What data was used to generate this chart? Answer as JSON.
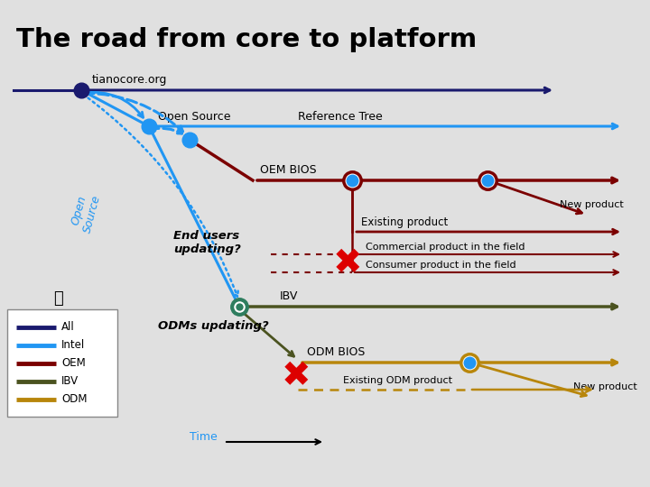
{
  "title": "The road from core to platform",
  "bg_color": "#e0e0e0",
  "colors": {
    "all": "#1a1a6e",
    "intel": "#2196F3",
    "oem": "#7B0000",
    "ibv": "#4B5320",
    "odm": "#B8860B",
    "red_x": "#dd0000",
    "blue_dot": "#2196F3",
    "teal_dot": "#2e7d5e"
  },
  "legend_items": [
    {
      "label": "All",
      "color": "#1a1a6e"
    },
    {
      "label": "Intel",
      "color": "#2196F3"
    },
    {
      "label": "OEM",
      "color": "#7B0000"
    },
    {
      "label": "IBV",
      "color": "#4B5320"
    },
    {
      "label": "ODM",
      "color": "#B8860B"
    }
  ]
}
